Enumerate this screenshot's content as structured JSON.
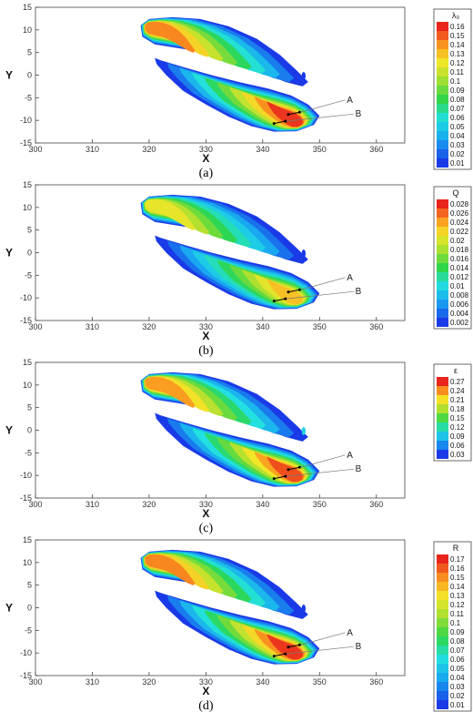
{
  "chart_data": [
    {
      "type": "heatmap",
      "caption": "(a)",
      "xlabel": "X",
      "ylabel": "Y",
      "xlim": [
        300,
        365
      ],
      "ylim": [
        -15,
        15
      ],
      "xticks": [
        300,
        310,
        320,
        330,
        340,
        350,
        360
      ],
      "yticks": [
        -15,
        -10,
        -5,
        0,
        5,
        10,
        15
      ],
      "legend_title": "λ₀",
      "legend_position": "right",
      "levels": [
        "0.16",
        "0.15",
        "0.14",
        "0.13",
        "0.12",
        "0.11",
        "0.1",
        "0.09",
        "0.08",
        "0.07",
        "0.06",
        "0.05",
        "0.04",
        "0.03",
        "0.02",
        "0.01"
      ],
      "annotations": [
        {
          "label": "A",
          "x": 346,
          "y": -8.5
        },
        {
          "label": "B",
          "x": 343.5,
          "y": -10.5
        }
      ]
    },
    {
      "type": "heatmap",
      "caption": "(b)",
      "xlabel": "X",
      "ylabel": "Y",
      "xlim": [
        300,
        365
      ],
      "ylim": [
        -15,
        15
      ],
      "xticks": [
        300,
        310,
        320,
        330,
        340,
        350,
        360
      ],
      "yticks": [
        -15,
        -10,
        -5,
        0,
        5,
        10,
        15
      ],
      "legend_title": "Q",
      "legend_position": "right",
      "levels": [
        "0.028",
        "0.026",
        "0.024",
        "0.022",
        "0.02",
        "0.018",
        "0.016",
        "0.014",
        "0.012",
        "0.01",
        "0.008",
        "0.006",
        "0.004",
        "0.002"
      ],
      "annotations": [
        {
          "label": "A",
          "x": 346,
          "y": -8.5
        },
        {
          "label": "B",
          "x": 343.5,
          "y": -10.5
        }
      ]
    },
    {
      "type": "heatmap",
      "caption": "(c)",
      "xlabel": "X",
      "ylabel": "Y",
      "xlim": [
        300,
        365
      ],
      "ylim": [
        -15,
        15
      ],
      "xticks": [
        300,
        310,
        320,
        330,
        340,
        350,
        360
      ],
      "yticks": [
        -15,
        -10,
        -5,
        0,
        5,
        10,
        15
      ],
      "legend_title": "ε",
      "legend_position": "right",
      "levels": [
        "0.27",
        "0.24",
        "0.21",
        "0.18",
        "0.15",
        "0.12",
        "0.09",
        "0.06",
        "0.03"
      ],
      "annotations": [
        {
          "label": "A",
          "x": 346,
          "y": -8.5
        },
        {
          "label": "B",
          "x": 343.5,
          "y": -10.5
        }
      ]
    },
    {
      "type": "heatmap",
      "caption": "(d)",
      "xlabel": "X",
      "ylabel": "Y",
      "xlim": [
        300,
        365
      ],
      "ylim": [
        -15,
        15
      ],
      "xticks": [
        300,
        310,
        320,
        330,
        340,
        350,
        360
      ],
      "yticks": [
        -15,
        -10,
        -5,
        0,
        5,
        10,
        15
      ],
      "legend_title": "R",
      "legend_position": "right",
      "levels": [
        "0.17",
        "0.16",
        "0.15",
        "0.14",
        "0.13",
        "0.12",
        "0.11",
        "0.1",
        "0.09",
        "0.08",
        "0.07",
        "0.06",
        "0.05",
        "0.04",
        "0.03",
        "0.02",
        "0.01"
      ],
      "annotations": [
        {
          "label": "A",
          "x": 346,
          "y": -8.5
        },
        {
          "label": "B",
          "x": 343.5,
          "y": -10.5
        }
      ]
    }
  ]
}
